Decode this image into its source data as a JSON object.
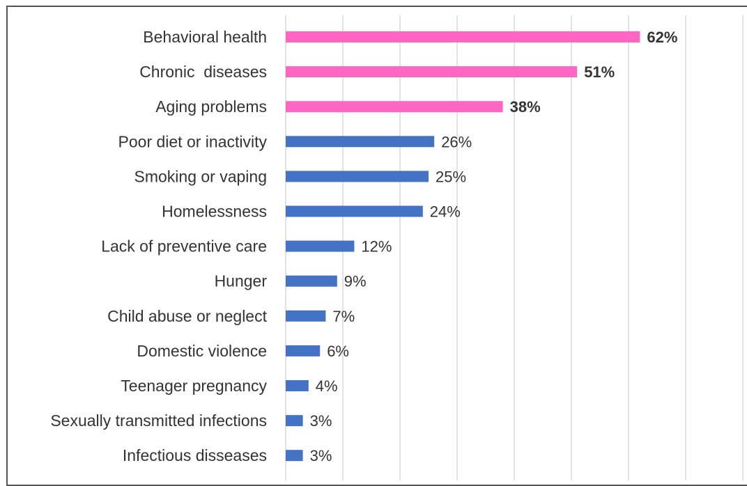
{
  "chart_data": {
    "type": "bar",
    "orientation": "horizontal",
    "title": "",
    "xlabel": "",
    "ylabel": "",
    "xlim": [
      0,
      80
    ],
    "grid": true,
    "legend": "none",
    "categories": [
      "Behavioral health",
      "Chronic  diseases",
      "Aging problems",
      "Poor diet or inactivity",
      "Smoking or vaping",
      "Homelessness",
      "Lack of preventive care",
      "Hunger",
      "Child abuse or neglect",
      "Domestic violence",
      "Teenager pregnancy",
      "Sexually transmitted infections",
      "Infectious disseases"
    ],
    "values": [
      62,
      51,
      38,
      26,
      25,
      24,
      12,
      9,
      7,
      6,
      4,
      3,
      3
    ],
    "value_labels": [
      "62%",
      "51%",
      "38%",
      "26%",
      "25%",
      "24%",
      "12%",
      "9%",
      "7%",
      "6%",
      "4%",
      "3%",
      "3%"
    ],
    "highlighted": [
      true,
      true,
      true,
      false,
      false,
      false,
      false,
      false,
      false,
      false,
      false,
      false,
      false
    ],
    "colors": {
      "highlight": "#FF66C4",
      "default": "#4472C4",
      "grid": "#D9D9D9"
    }
  }
}
